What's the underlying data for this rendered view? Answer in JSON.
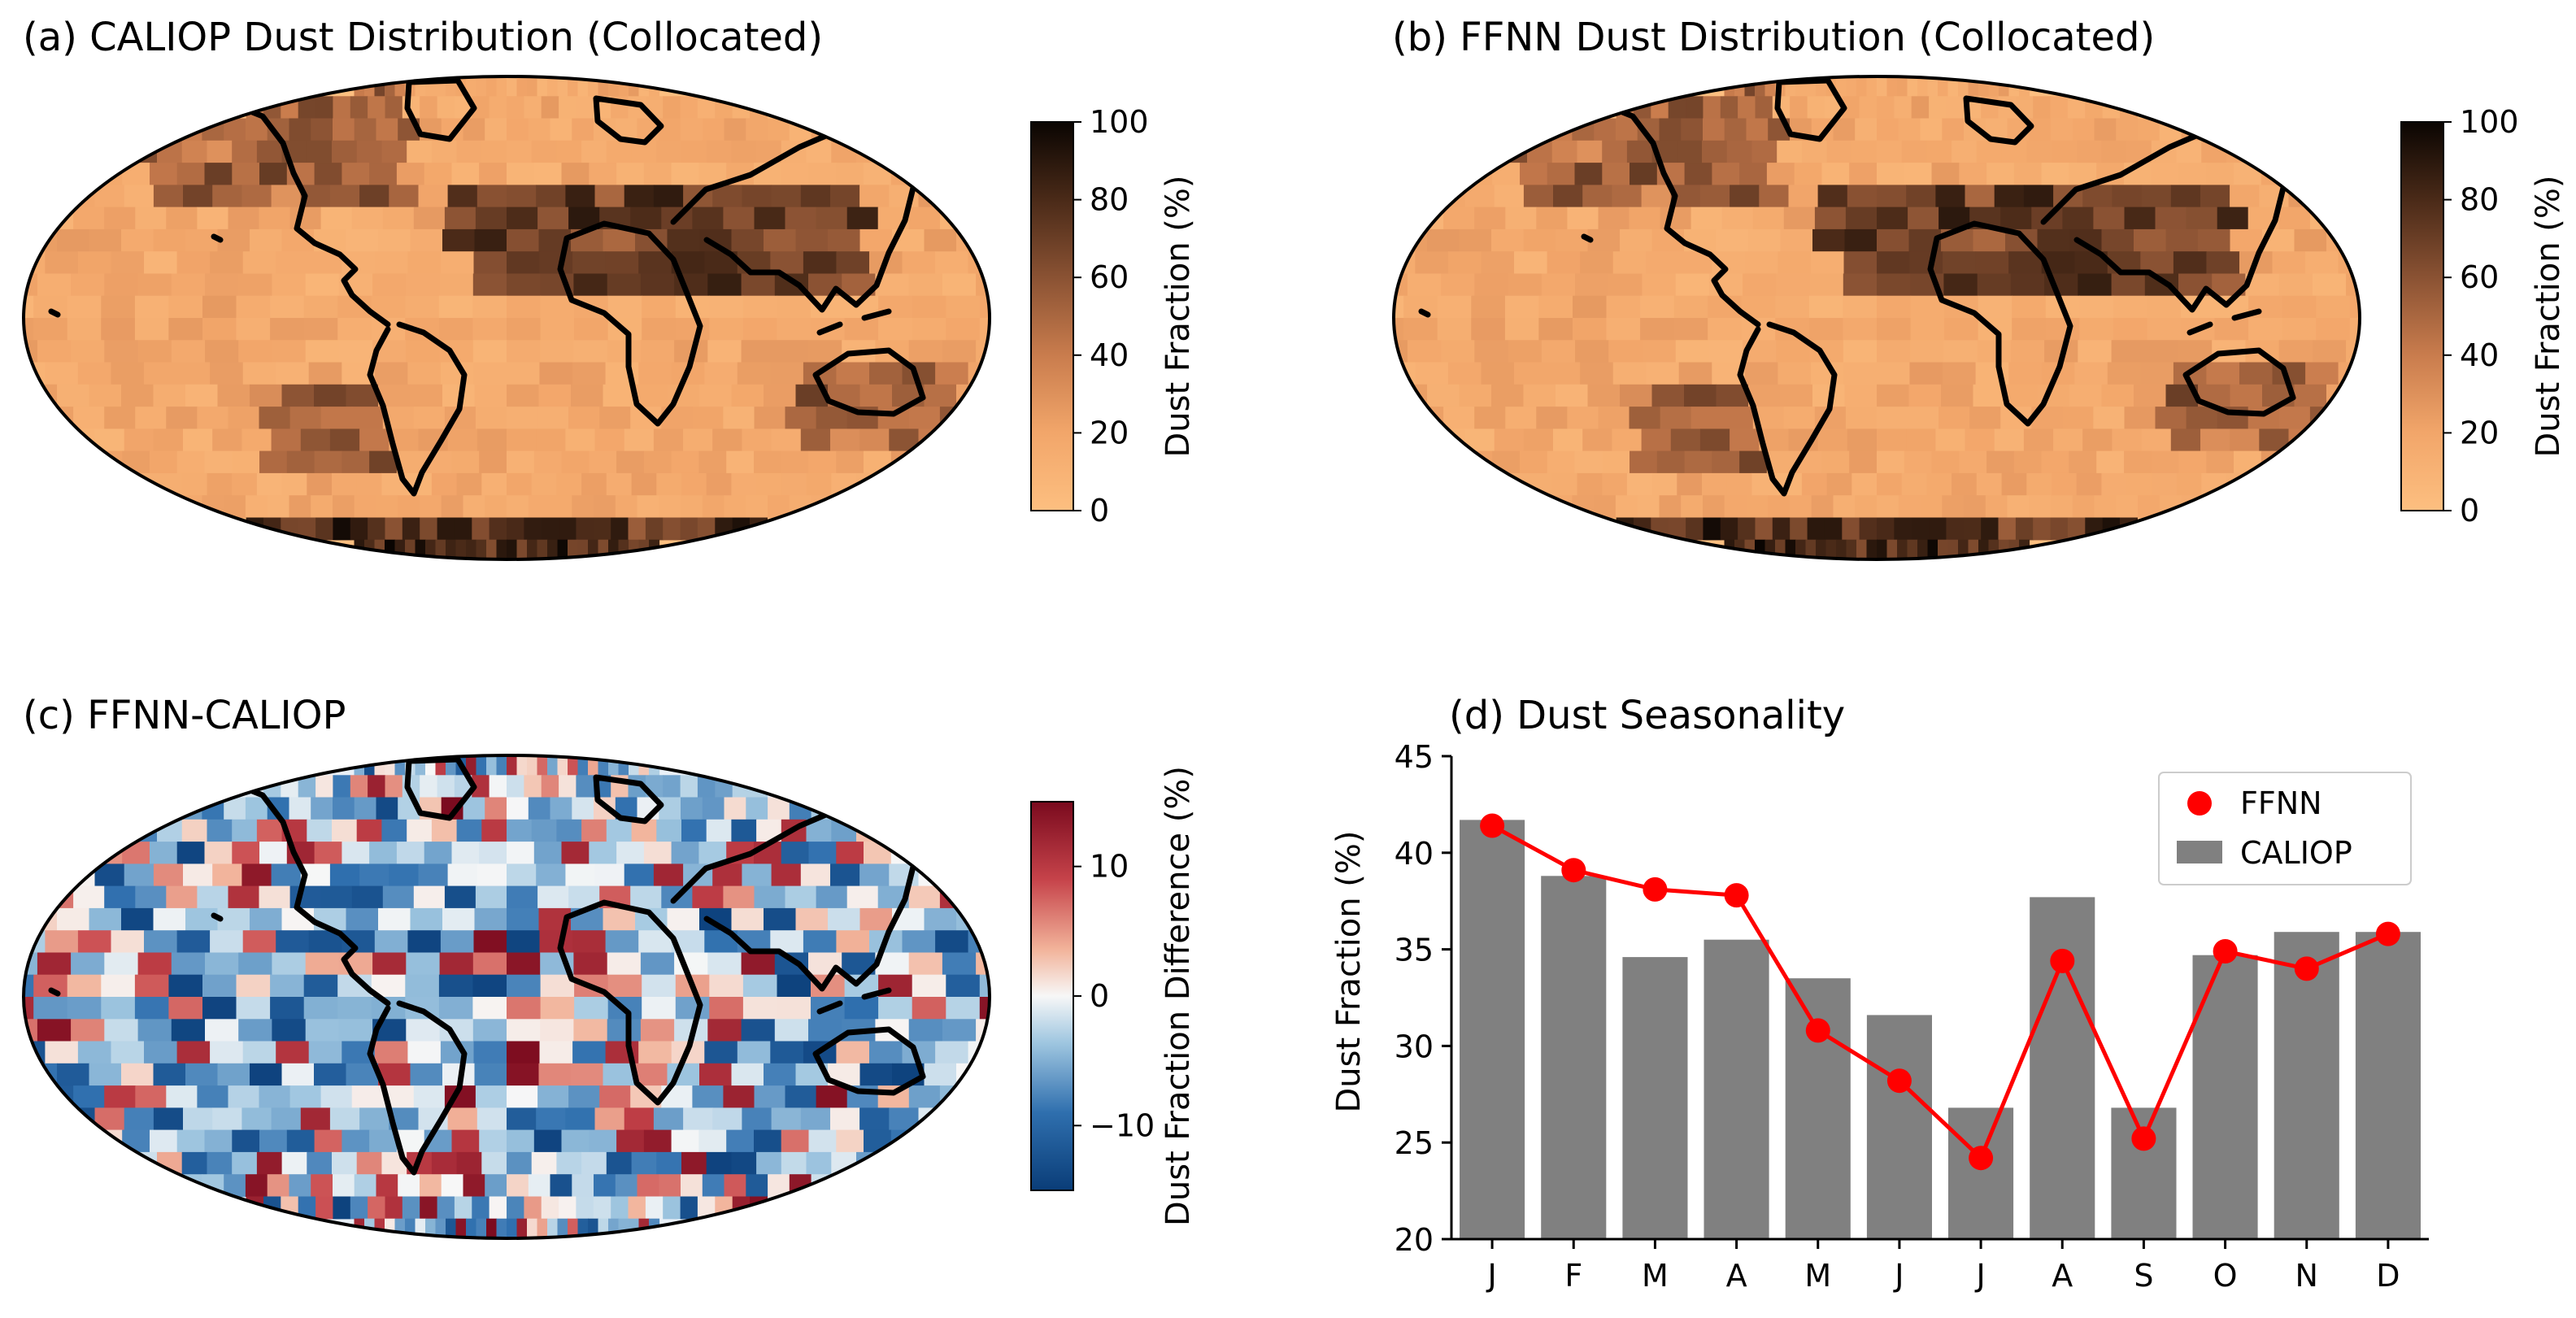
{
  "panels": {
    "a": {
      "title": "(a) CALIOP Dust Distribution (Collocated)",
      "colorbar": {
        "label": "Dust Fraction (%)",
        "ticks": [
          "0",
          "20",
          "40",
          "60",
          "80",
          "100"
        ],
        "min": 0,
        "max": 100
      }
    },
    "b": {
      "title": "(b) FFNN Dust Distribution (Collocated)",
      "colorbar": {
        "label": "Dust Fraction (%)",
        "ticks": [
          "0",
          "20",
          "40",
          "60",
          "80",
          "100"
        ],
        "min": 0,
        "max": 100
      }
    },
    "c": {
      "title": "(c) FFNN-CALIOP",
      "colorbar": {
        "label": "Dust Fraction Difference (%)",
        "ticks": [
          "−10",
          "0",
          "10"
        ],
        "min": -15,
        "max": 15
      }
    },
    "d": {
      "title": "(d) Dust Seasonality"
    }
  },
  "colors": {
    "dust_low": "#fdbf80",
    "dust_high": "#0a0502",
    "diff_neg": "#0a3d78",
    "diff_pos": "#7a0a1e",
    "bar": "#808080",
    "line": "#ff0000",
    "coast": "#000000"
  },
  "chart_data": {
    "type": "bar",
    "title": "(d) Dust Seasonality",
    "xlabel": "",
    "ylabel": "Dust Fraction (%)",
    "ylim": [
      20,
      45
    ],
    "yticks": [
      20,
      25,
      30,
      35,
      40,
      45
    ],
    "categories": [
      "J",
      "F",
      "M",
      "A",
      "M",
      "J",
      "J",
      "A",
      "S",
      "O",
      "N",
      "D"
    ],
    "legend_position": "top-right",
    "series": [
      {
        "name": "CALIOP",
        "kind": "bar",
        "values": [
          41.7,
          38.8,
          34.6,
          35.5,
          33.5,
          31.6,
          26.8,
          37.7,
          26.8,
          34.7,
          35.9,
          35.9
        ]
      },
      {
        "name": "FFNN",
        "kind": "line-marker",
        "values": [
          41.4,
          39.1,
          38.1,
          37.8,
          30.8,
          28.2,
          24.2,
          34.4,
          25.2,
          34.9,
          34.0,
          35.8
        ]
      }
    ]
  }
}
